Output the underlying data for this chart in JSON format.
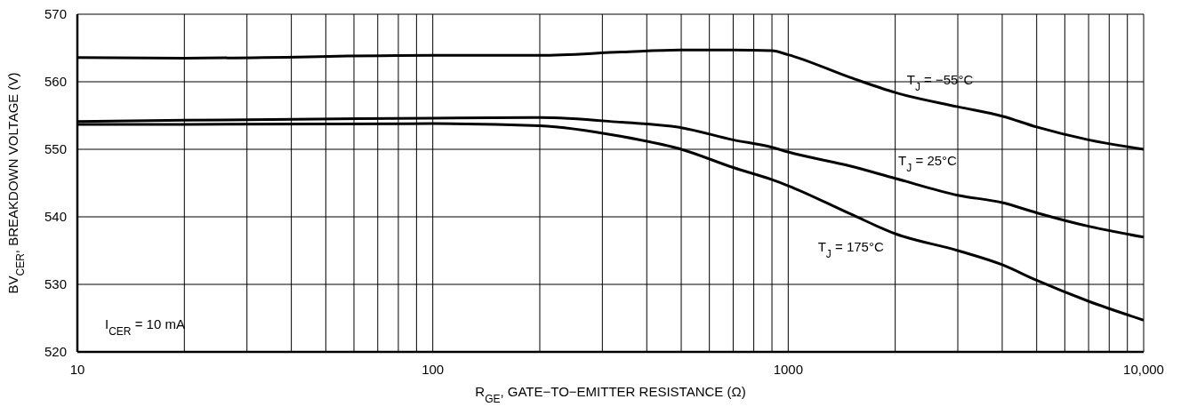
{
  "chart_data": {
    "type": "line",
    "xlabel": "R$_{GE}$, GATE−TO−EMITTER RESISTANCE (Ω)",
    "ylabel": "BV$_{CER}$, BREAKDOWN VOLTAGE (V)",
    "log": "x",
    "x": [
      10,
      20,
      100,
      200,
      340,
      500,
      700,
      900,
      1000,
      1500,
      2000,
      3000,
      4000,
      5000,
      7000,
      10000
    ],
    "series": [
      {
        "name": "T$_{J}$ = −55°C",
        "color": "#000000",
        "values": [
          563.6,
          563.5,
          563.9,
          563.9,
          564.4,
          564.7,
          564.7,
          564.6,
          564.0,
          560.6,
          558.4,
          556.3,
          554.9,
          553.3,
          551.4,
          550.0
        ]
      },
      {
        "name": "T$_{J}$ = 25°C",
        "color": "#000000",
        "values": [
          554.1,
          554.3,
          554.6,
          554.7,
          554.0,
          553.2,
          551.4,
          550.3,
          549.6,
          547.5,
          545.7,
          543.2,
          542.1,
          540.6,
          538.6,
          537.0
        ]
      },
      {
        "name": "T$_{J}$ = 175°C",
        "color": "#000000",
        "values": [
          553.7,
          553.7,
          553.8,
          553.5,
          551.9,
          550.0,
          547.3,
          545.5,
          544.6,
          540.4,
          537.5,
          535.0,
          532.9,
          530.6,
          527.5,
          524.7
        ]
      }
    ],
    "xlim": [
      10,
      10000
    ],
    "xticks": [
      10,
      {
        "value": 20,
        "label": null
      },
      {
        "value": 30,
        "label": null
      },
      {
        "value": 40,
        "label": null
      },
      {
        "value": 50,
        "label": null
      },
      {
        "value": 60,
        "label": null
      },
      {
        "value": 70,
        "label": null
      },
      {
        "value": 80,
        "label": null
      },
      {
        "value": 90,
        "label": null
      },
      100,
      {
        "value": 200,
        "label": null
      },
      {
        "value": 300,
        "label": null
      },
      {
        "value": 400,
        "label": null
      },
      {
        "value": 500,
        "label": null
      },
      {
        "value": 600,
        "label": null
      },
      {
        "value": 700,
        "label": null
      },
      {
        "value": 800,
        "label": null
      },
      {
        "value": 900,
        "label": null
      },
      1000,
      {
        "value": 2000,
        "label": null
      },
      {
        "value": 3000,
        "label": null
      },
      {
        "value": 4000,
        "label": null
      },
      {
        "value": 5000,
        "label": null
      },
      {
        "value": 6000,
        "label": null
      },
      {
        "value": 7000,
        "label": null
      },
      {
        "value": 8000,
        "label": null
      },
      {
        "value": 9000,
        "label": null
      },
      {
        "value": 10000,
        "label": "10,000"
      }
    ],
    "ylim": [
      520,
      570
    ],
    "yticks": [
      520,
      530,
      540,
      550,
      560,
      570
    ],
    "annotations": [
      "I$_{CER}$ = 10 mA"
    ],
    "grid": true,
    "legend": false,
    "marker": "none",
    "line_style": "solid"
  }
}
